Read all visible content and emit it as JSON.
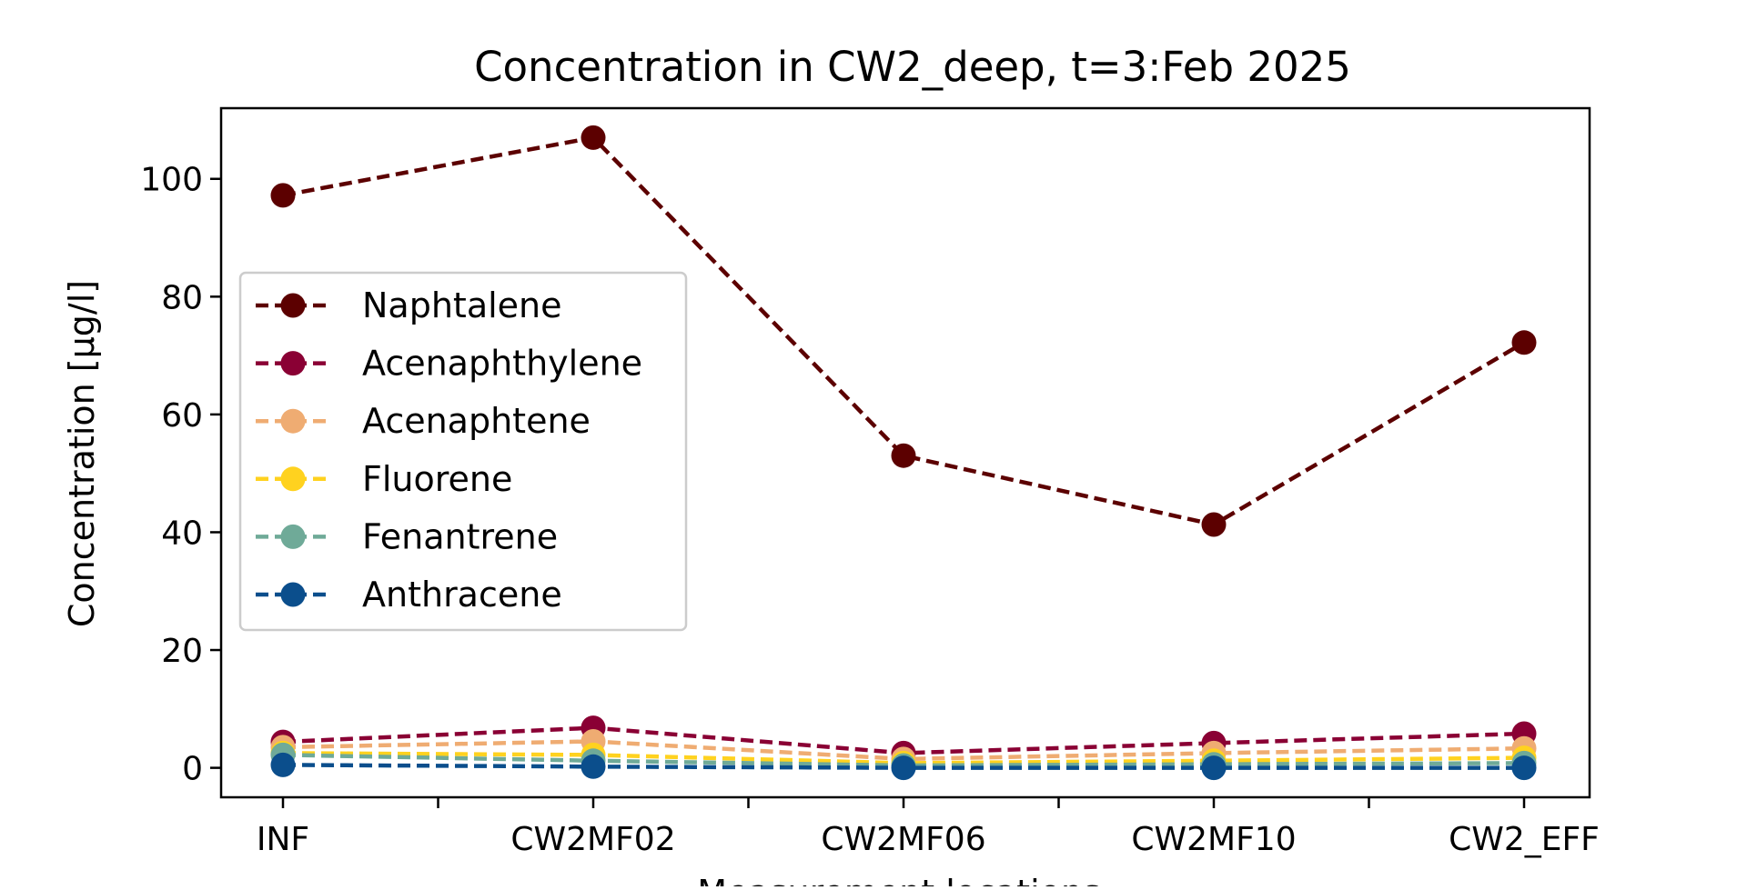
{
  "chart_data": {
    "type": "line",
    "title": "Concentration in CW2_deep, t=3:Feb 2025",
    "xlabel": "Measurement locations",
    "ylabel": "Concentration [µg/l]",
    "categories": [
      "INF",
      "CW2MF02",
      "CW2MF06",
      "CW2MF10",
      "CW2_EFF"
    ],
    "ylim": [
      -5,
      112
    ],
    "yticks": [
      0,
      20,
      40,
      60,
      80,
      100
    ],
    "grid": false,
    "legend_position": "center-left",
    "line_style": "dashed",
    "marker": "circle",
    "series": [
      {
        "name": "Naphtalene",
        "color": "#5c0000",
        "values": [
          97.2,
          107.0,
          53.0,
          41.3,
          72.2
        ]
      },
      {
        "name": "Acenaphthylene",
        "color": "#8a0034",
        "values": [
          4.4,
          6.8,
          2.5,
          4.2,
          5.8
        ]
      },
      {
        "name": "Acenaphtene",
        "color": "#efac72",
        "values": [
          3.5,
          4.5,
          1.5,
          2.5,
          3.3
        ]
      },
      {
        "name": "Fluorene",
        "color": "#ffd21f",
        "values": [
          2.5,
          2.2,
          0.8,
          1.2,
          1.7
        ]
      },
      {
        "name": "Fenantrene",
        "color": "#6faa98",
        "values": [
          2.2,
          1.2,
          0.4,
          0.6,
          0.8
        ]
      },
      {
        "name": "Anthracene",
        "color": "#0b4e8c",
        "values": [
          0.5,
          0.2,
          0.0,
          0.0,
          0.0
        ]
      }
    ]
  }
}
